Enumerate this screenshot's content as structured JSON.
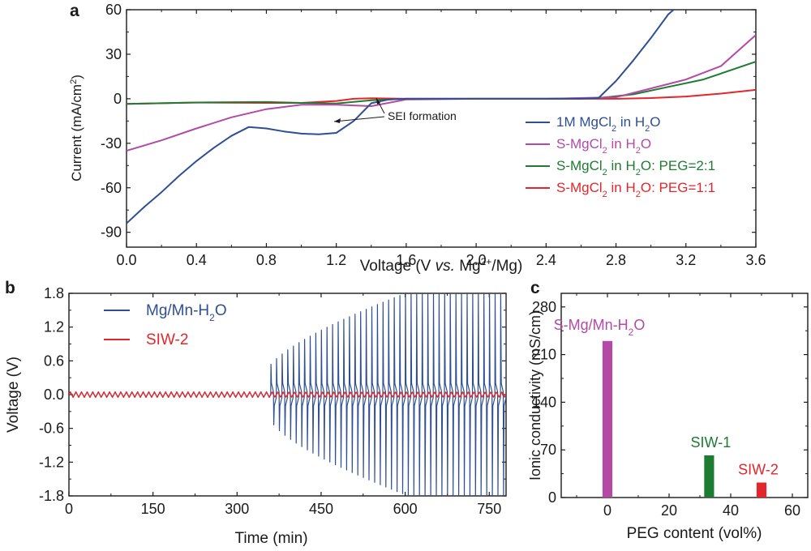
{
  "chart_data": [
    {
      "panel": "a",
      "type": "line",
      "title": "",
      "xlabel_parts": [
        "Voltage (V ",
        "vs.",
        " Mg",
        "2+",
        "/Mg)"
      ],
      "ylabel_parts": [
        "Current (mA/cm",
        "2",
        ")"
      ],
      "xlim": [
        0.0,
        3.6
      ],
      "ylim": [
        -100,
        60
      ],
      "xticks": [
        0.0,
        0.4,
        0.8,
        1.2,
        1.6,
        2.0,
        2.4,
        2.8,
        3.2,
        3.6
      ],
      "xtick_labels": [
        "0.0",
        "0.4",
        "0.8",
        "1.2",
        "1.6",
        "2.0",
        "2.4",
        "2.8",
        "3.2",
        "3.6"
      ],
      "yticks": [
        -90,
        -60,
        -30,
        0,
        30,
        60
      ],
      "ytick_labels": [
        "-90",
        "-60",
        "-30",
        "0",
        "30",
        "60"
      ],
      "legend_position": "right",
      "annotation": "SEI formation",
      "series": [
        {
          "name": "1M MgCl2 in H2O",
          "label_parts": [
            "1M MgCl",
            "2",
            " in H",
            "2",
            "O"
          ],
          "color": "#2e4f93",
          "x": [
            0.0,
            0.1,
            0.2,
            0.3,
            0.4,
            0.5,
            0.6,
            0.7,
            0.8,
            0.9,
            1.0,
            1.1,
            1.2,
            1.3,
            1.4,
            1.5,
            1.6,
            2.0,
            2.4,
            2.6,
            2.7,
            2.8,
            2.9,
            3.0,
            3.1,
            3.13
          ],
          "y": [
            -84,
            -73,
            -63,
            -52,
            -42,
            -33,
            -25,
            -19,
            -20,
            -22,
            -23.5,
            -24,
            -23,
            -15,
            -3,
            -0.5,
            0,
            0,
            0,
            0,
            0.5,
            12,
            26,
            41,
            57,
            60
          ]
        },
        {
          "name": "S-MgCl2 in H2O",
          "label_parts": [
            "S-MgCl",
            "2",
            " in H",
            "2",
            "O"
          ],
          "color": "#b24aa6",
          "x": [
            0.0,
            0.2,
            0.4,
            0.6,
            0.8,
            1.0,
            1.2,
            1.4,
            1.6,
            2.0,
            2.4,
            2.8,
            3.0,
            3.2,
            3.4,
            3.6
          ],
          "y": [
            -35,
            -28,
            -20,
            -12.5,
            -7,
            -4,
            -4,
            -5,
            -0.5,
            0,
            0,
            1,
            7,
            13,
            22,
            43
          ]
        },
        {
          "name": "S-MgCl2 in H2O: PEG=2:1",
          "label_parts": [
            "S-MgCl",
            "2",
            " in H",
            "2",
            "O: PEG=2:1"
          ],
          "color": "#1e7b32",
          "x": [
            0.0,
            0.4,
            0.8,
            1.0,
            1.2,
            1.4,
            1.6,
            2.0,
            2.4,
            2.7,
            2.9,
            3.1,
            3.3,
            3.6
          ],
          "y": [
            -3.5,
            -2.5,
            -2.2,
            -2.8,
            -3.2,
            -1,
            0,
            0,
            0,
            0.5,
            3,
            8,
            13,
            25
          ]
        },
        {
          "name": "S-MgCl2 in H2O: PEG=1:1",
          "label_parts": [
            "S-MgCl",
            "2",
            " in H",
            "2",
            "O: PEG=1:1"
          ],
          "color": "#e3262b",
          "x": [
            0.0,
            0.4,
            0.8,
            1.0,
            1.2,
            1.3,
            1.4,
            1.6,
            2.0,
            2.4,
            2.8,
            3.0,
            3.2,
            3.4,
            3.6
          ],
          "y": [
            -3.5,
            -2.5,
            -2.8,
            -2.8,
            -1.5,
            0,
            0.3,
            0,
            0,
            0,
            0,
            0.5,
            1.5,
            3.5,
            6
          ]
        }
      ]
    },
    {
      "panel": "b",
      "type": "line",
      "xlabel": "Time (min)",
      "ylabel": "Voltage (V)",
      "xlim": [
        0,
        780
      ],
      "ylim": [
        -1.8,
        1.8
      ],
      "xticks": [
        0,
        150,
        300,
        450,
        600,
        750
      ],
      "xtick_labels": [
        "0",
        "150",
        "300",
        "450",
        "600",
        "750"
      ],
      "yticks": [
        -1.8,
        -1.2,
        -0.6,
        0.0,
        0.6,
        1.2,
        1.8
      ],
      "ytick_labels": [
        "-1.8",
        "-1.2",
        "-0.6",
        "0.0",
        "0.6",
        "1.2",
        "1.8"
      ],
      "legend_position": "top-left",
      "cycle_period_min": 10,
      "series": [
        {
          "name": "Mg/Mn-H2O",
          "label_parts": [
            "Mg/Mn-H",
            "2",
            "O"
          ],
          "color": "#2e4f93",
          "baseline_amplitude_V": 0.05,
          "spike_onset_min": 355,
          "spike_full_min": 600,
          "spike_max_V": 1.8
        },
        {
          "name": "SIW-2",
          "label_parts": [
            "SIW-2"
          ],
          "color": "#e3262b",
          "baseline_amplitude_V": 0.045
        }
      ]
    },
    {
      "panel": "c",
      "type": "bar",
      "xlabel": "PEG content (vol%)",
      "ylabel": "Ionic conductivity (mS/cm)",
      "xlim": [
        -15,
        65
      ],
      "ylim": [
        0,
        300
      ],
      "xticks": [
        0,
        20,
        40,
        60
      ],
      "xtick_labels": [
        "0",
        "20",
        "40",
        "60"
      ],
      "yticks": [
        0,
        70,
        140,
        210,
        280
      ],
      "ytick_labels": [
        "0",
        "70",
        "140",
        "210",
        "280"
      ],
      "bar_width": 3.2,
      "bars": [
        {
          "label_parts": [
            "S-Mg/Mn-H",
            "2",
            "O"
          ],
          "x": 0,
          "value": 230,
          "color": "#b24aa6"
        },
        {
          "label_parts": [
            "SIW-1"
          ],
          "x": 33,
          "value": 62,
          "color": "#1e7b32"
        },
        {
          "label_parts": [
            "SIW-2"
          ],
          "x": 50,
          "value": 22,
          "color": "#e3262b"
        }
      ]
    }
  ],
  "panel_labels": [
    "a",
    "b",
    "c"
  ],
  "colors": {
    "axis": "#1a1a1a",
    "text": "#1a1a1a"
  }
}
